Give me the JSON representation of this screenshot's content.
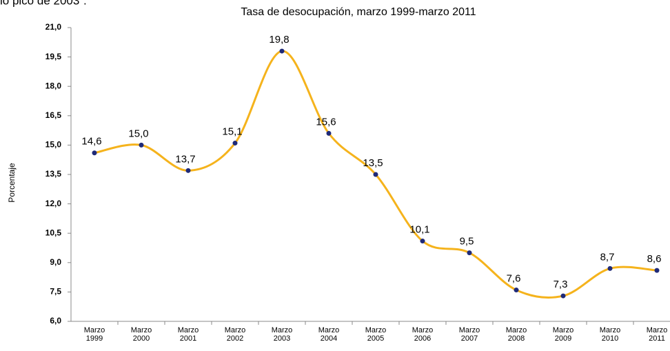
{
  "caption": "lo pico de 2003”.",
  "chart_data": {
    "type": "line",
    "title": "Tasa de desocupación, marzo 1999-marzo 2011",
    "y_label": "Porcentaje",
    "categories": [
      "Marzo 1999",
      "Marzo 2000",
      "Marzo 2001",
      "Marzo 2002",
      "Marzo 2003",
      "Marzo 2004",
      "Marzo 2005",
      "Marzo 2006",
      "Marzo 2007",
      "Marzo 2008",
      "Marzo 2009",
      "Marzo 2010",
      "Marzo 2011"
    ],
    "series": [
      {
        "name": "Tasa de desocupación",
        "color": "#f5b31c",
        "marker_color": "#1f2a78",
        "values": [
          14.6,
          15.0,
          13.7,
          15.1,
          19.8,
          15.6,
          13.5,
          10.1,
          9.5,
          7.6,
          7.3,
          8.7,
          8.6
        ],
        "value_labels": [
          "14,6",
          "15,0",
          "13,7",
          "15,1",
          "19,8",
          "15,6",
          "13,5",
          "10,1",
          "9,5",
          "7,6",
          "7,3",
          "8,7",
          "8,6"
        ]
      }
    ],
    "ylim": [
      6,
      21
    ],
    "yticks": [
      {
        "value": 6,
        "label": "6,0"
      },
      {
        "value": 7.5,
        "label": "7,5"
      },
      {
        "value": 9,
        "label": "9,0"
      },
      {
        "value": 10.5,
        "label": "10,5"
      },
      {
        "value": 12,
        "label": "12,0"
      },
      {
        "value": 13.5,
        "label": "13,5"
      },
      {
        "value": 15,
        "label": "15,0"
      },
      {
        "value": 16.5,
        "label": "16,5"
      },
      {
        "value": 18,
        "label": "18,0"
      },
      {
        "value": 19.5,
        "label": "19,5"
      },
      {
        "value": 21,
        "label": "21,0"
      }
    ]
  }
}
